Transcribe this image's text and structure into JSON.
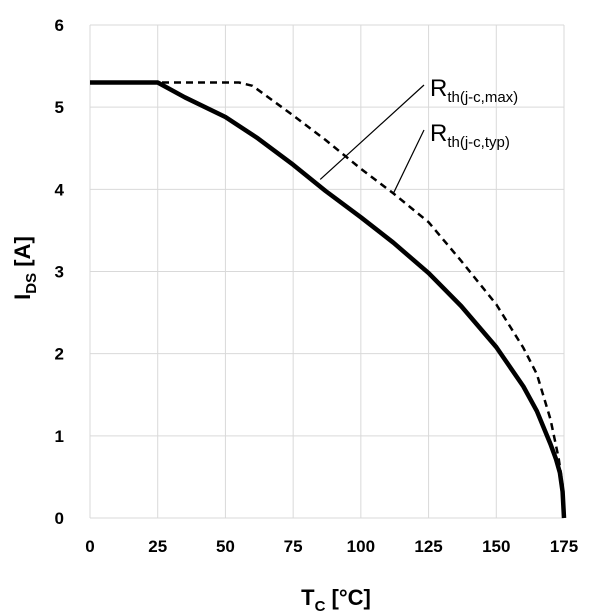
{
  "chart_data": {
    "type": "line",
    "title": "",
    "xlabel": {
      "main": "T",
      "sub": "C",
      "suffix": " [°C]"
    },
    "ylabel": {
      "main": "I",
      "sub": "DS",
      "suffix": " [A]"
    },
    "xlim": [
      0,
      175
    ],
    "ylim": [
      0,
      6
    ],
    "xticks": [
      "0",
      "25",
      "50",
      "75",
      "100",
      "125",
      "150",
      "175"
    ],
    "yticks": [
      "0",
      "1",
      "2",
      "3",
      "4",
      "5",
      "6"
    ],
    "grid": true,
    "legend": "none",
    "series": [
      {
        "name": "R_th(j-c,max)",
        "style": "solid",
        "x": [
          0,
          25,
          35,
          50,
          62,
          75,
          87,
          100,
          112,
          125,
          137,
          150,
          160,
          165,
          170,
          172,
          173.5,
          174.5,
          175
        ],
        "y": [
          5.3,
          5.3,
          5.12,
          4.88,
          4.62,
          4.3,
          3.98,
          3.66,
          3.35,
          2.98,
          2.58,
          2.08,
          1.6,
          1.3,
          0.9,
          0.72,
          0.55,
          0.32,
          0
        ]
      },
      {
        "name": "R_th(j-c,typ)",
        "style": "dashed",
        "x": [
          0,
          25,
          55,
          60,
          75,
          87,
          100,
          112,
          125,
          137,
          150,
          160,
          165,
          170,
          173,
          174.5,
          175
        ],
        "y": [
          5.3,
          5.3,
          5.3,
          5.26,
          4.9,
          4.6,
          4.25,
          3.95,
          3.6,
          3.13,
          2.6,
          2.07,
          1.75,
          1.2,
          0.73,
          0.4,
          0
        ]
      }
    ],
    "annotations": [
      {
        "main": "R",
        "sub": "th(j-c,max)",
        "series": 0
      },
      {
        "main": "R",
        "sub": "th(j-c,typ)",
        "series": 1
      }
    ]
  }
}
